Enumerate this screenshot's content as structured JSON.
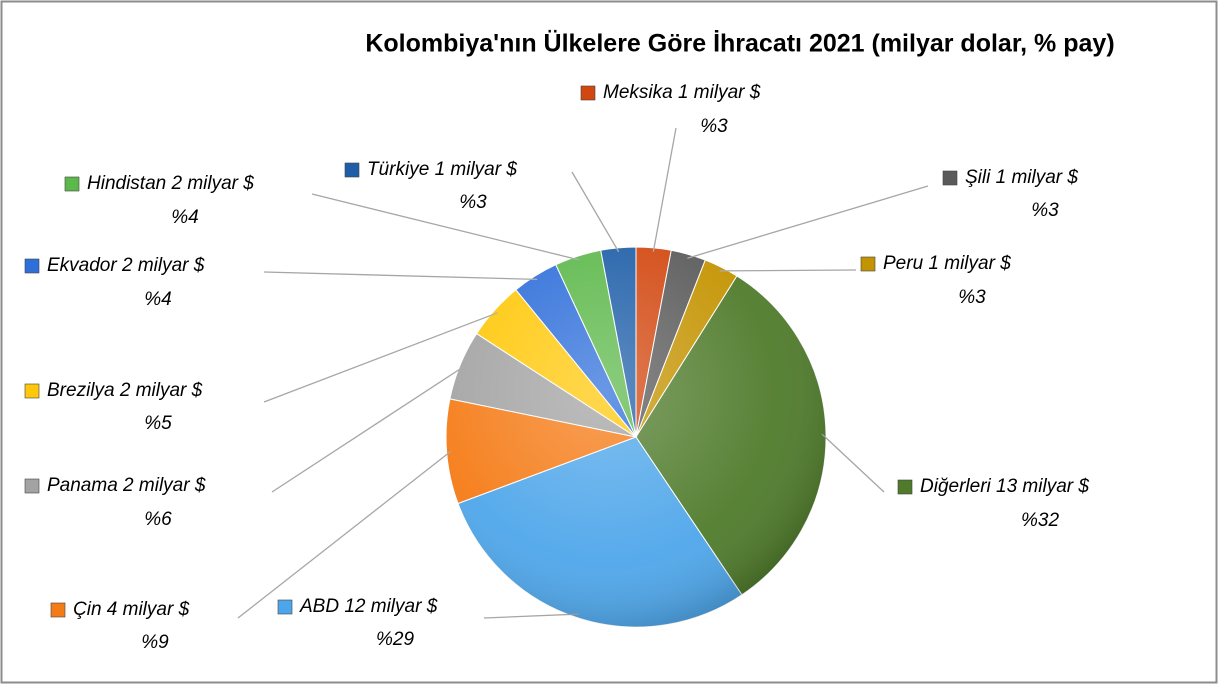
{
  "chart_data": {
    "type": "pie",
    "title": "Kolombiya'nın Ülkelere Göre İhracatı 2021 (milyar dolar, % pay)",
    "categories": [
      "Meksika 1 milyar $",
      "Şili 1 milyar $",
      "Peru 1 milyar $",
      "Diğerleri 13 milyar $",
      "ABD 12 milyar $",
      "Çin 4 milyar $",
      "Panama 2 milyar $",
      "Brezilya 2 milyar $",
      "Ekvador 2 milyar $",
      "Hindistan 2 milyar $",
      "Türkiye 1 milyar $"
    ],
    "values": [
      3,
      3,
      3,
      32,
      29,
      9,
      6,
      5,
      4,
      4,
      3
    ],
    "value_labels": [
      "%3",
      "%3",
      "%3",
      "%32",
      "%29",
      "%9",
      "%6",
      "%5",
      "%4",
      "%4",
      "%3"
    ],
    "colors": [
      "#d2470f",
      "#5a5a5a",
      "#c49300",
      "#4f7b2b",
      "#4ea6ea",
      "#f57b16",
      "#a3a3a3",
      "#ffc80a",
      "#2f6fda",
      "#5cb84a",
      "#1e5ea8"
    ]
  }
}
